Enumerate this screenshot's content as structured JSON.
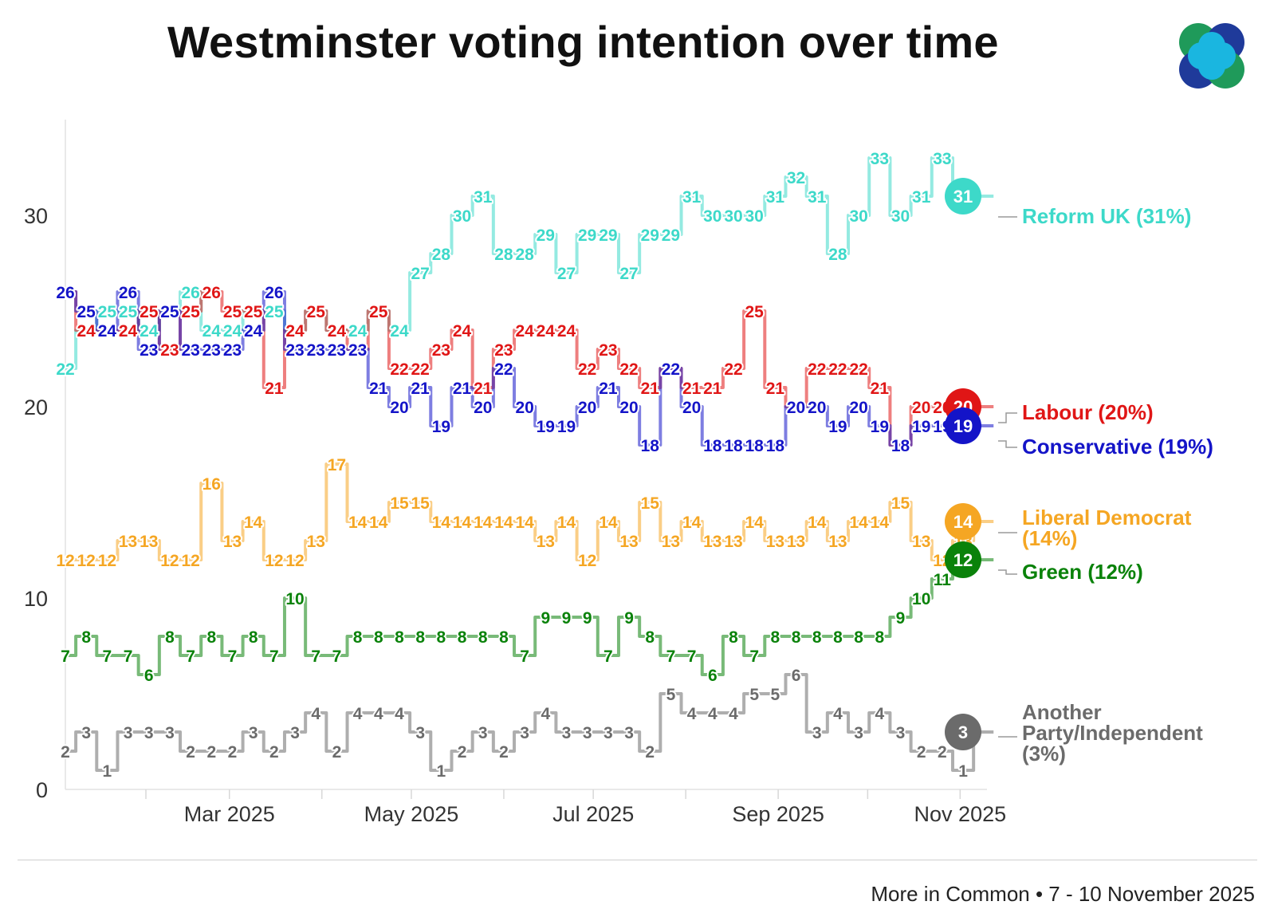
{
  "title": "Westminster voting intention over time",
  "source": "More in Common • 7 - 10 November 2025",
  "logo": {
    "name": "more-in-common-logo",
    "colors": [
      "#1aa9d8",
      "#1f3a9a",
      "#1f9a5a"
    ]
  },
  "chart_data": {
    "type": "line",
    "title": "Westminster voting intention over time",
    "xlabel": "",
    "ylabel": "",
    "ylim": [
      0,
      35
    ],
    "yticks": [
      0,
      10,
      20,
      30
    ],
    "x_range": [
      "2025-01-05",
      "2025-11-10"
    ],
    "xticks": [
      {
        "label": "Mar 2025",
        "date": "2025-03-01"
      },
      {
        "label": "May 2025",
        "date": "2025-05-01"
      },
      {
        "label": "Jul 2025",
        "date": "2025-07-01"
      },
      {
        "label": "Sep 2025",
        "date": "2025-09-01"
      },
      {
        "label": "Nov 2025",
        "date": "2025-11-01"
      }
    ],
    "minor_ticks": [
      "2025-02-01",
      "2025-04-01",
      "2025-06-01",
      "2025-08-01",
      "2025-10-01"
    ],
    "dates": [
      "2025-01-05",
      "2025-01-12",
      "2025-01-19",
      "2025-01-26",
      "2025-02-02",
      "2025-02-09",
      "2025-02-16",
      "2025-02-23",
      "2025-03-02",
      "2025-03-09",
      "2025-03-16",
      "2025-03-23",
      "2025-03-30",
      "2025-04-06",
      "2025-04-13",
      "2025-04-20",
      "2025-04-27",
      "2025-05-04",
      "2025-05-11",
      "2025-05-18",
      "2025-05-25",
      "2025-06-01",
      "2025-06-08",
      "2025-06-15",
      "2025-06-22",
      "2025-06-29",
      "2025-07-06",
      "2025-07-13",
      "2025-07-20",
      "2025-07-27",
      "2025-08-03",
      "2025-08-10",
      "2025-08-17",
      "2025-08-24",
      "2025-08-31",
      "2025-09-07",
      "2025-09-14",
      "2025-09-21",
      "2025-09-28",
      "2025-10-05",
      "2025-10-12",
      "2025-10-19",
      "2025-10-26",
      "2025-11-02",
      "2025-11-09"
    ],
    "series": [
      {
        "name": "Reform UK",
        "label": "Reform UK (31%)",
        "color": "#3dd9c9",
        "latest": 31,
        "values": [
          22,
          24,
          25,
          25,
          24,
          25,
          26,
          24,
          24,
          25,
          25,
          24,
          25,
          24,
          24,
          25,
          24,
          27,
          28,
          30,
          31,
          28,
          28,
          29,
          27,
          29,
          29,
          27,
          29,
          29,
          31,
          30,
          30,
          30,
          31,
          32,
          31,
          28,
          30,
          33,
          30,
          31,
          33,
          31,
          31
        ]
      },
      {
        "name": "Labour",
        "label": "Labour (20%)",
        "color": "#e01616",
        "latest": 20,
        "values": [
          26,
          24,
          24,
          24,
          25,
          23,
          25,
          26,
          25,
          25,
          21,
          24,
          25,
          24,
          23,
          25,
          22,
          22,
          23,
          24,
          21,
          23,
          24,
          24,
          24,
          22,
          23,
          22,
          21,
          22,
          21,
          21,
          22,
          25,
          21,
          20,
          22,
          22,
          22,
          21,
          18,
          20,
          20,
          20,
          20
        ]
      },
      {
        "name": "Conservative",
        "label": "Conservative (19%)",
        "color": "#1414c8",
        "latest": 19,
        "values": [
          26,
          25,
          24,
          26,
          23,
          25,
          23,
          23,
          23,
          24,
          26,
          23,
          23,
          23,
          23,
          21,
          20,
          21,
          19,
          21,
          20,
          22,
          20,
          19,
          19,
          20,
          21,
          20,
          18,
          22,
          20,
          18,
          18,
          18,
          18,
          20,
          20,
          19,
          20,
          19,
          18,
          19,
          19,
          19,
          19
        ]
      },
      {
        "name": "Liberal Democrat",
        "label": "Liberal Democrat (14%)",
        "color": "#f5a623",
        "latest": 14,
        "values": [
          12,
          12,
          12,
          13,
          13,
          12,
          12,
          16,
          13,
          14,
          12,
          12,
          13,
          17,
          14,
          14,
          15,
          15,
          14,
          14,
          14,
          14,
          14,
          13,
          14,
          12,
          14,
          13,
          15,
          13,
          14,
          13,
          13,
          14,
          13,
          13,
          14,
          13,
          14,
          14,
          15,
          13,
          12,
          13,
          14
        ]
      },
      {
        "name": "Green",
        "label": "Green (12%)",
        "color": "#0a820a",
        "latest": 12,
        "values": [
          7,
          8,
          7,
          7,
          6,
          8,
          7,
          8,
          7,
          8,
          7,
          10,
          7,
          7,
          8,
          8,
          8,
          8,
          8,
          8,
          8,
          8,
          7,
          9,
          9,
          9,
          7,
          9,
          8,
          7,
          7,
          6,
          8,
          7,
          8,
          8,
          8,
          8,
          8,
          8,
          9,
          10,
          11,
          12,
          12
        ]
      },
      {
        "name": "Another Party/Independent",
        "label": "Another Party/Independent (3%)",
        "color": "#6b6b6b",
        "latest": 3,
        "values": [
          2,
          3,
          1,
          3,
          3,
          3,
          2,
          2,
          2,
          3,
          2,
          3,
          4,
          2,
          4,
          4,
          4,
          3,
          1,
          2,
          3,
          2,
          3,
          4,
          3,
          3,
          3,
          3,
          2,
          5,
          4,
          4,
          4,
          5,
          5,
          6,
          3,
          4,
          3,
          4,
          3,
          2,
          2,
          1,
          3
        ]
      }
    ],
    "legend_labels": {
      "reform": "Reform UK (31%)",
      "labour": "Labour (20%)",
      "conservative": "Conservative (19%)",
      "libdem_line1": "Liberal Democrat",
      "libdem_line2": "(14%)",
      "green": "Green (12%)",
      "other_line1": "Another",
      "other_line2": "Party/Independent",
      "other_line3": "(3%)"
    },
    "legend_placement": "right"
  }
}
